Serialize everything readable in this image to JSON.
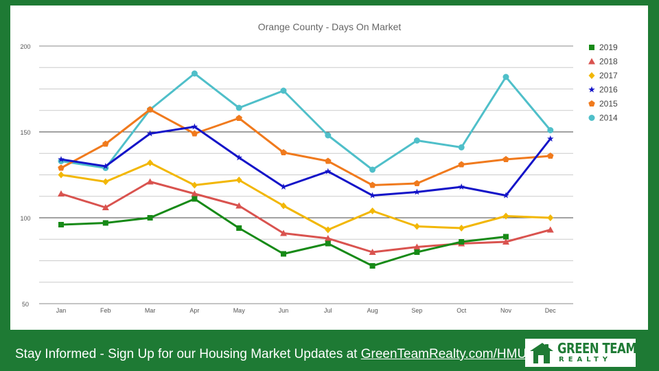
{
  "chart_data": {
    "type": "line",
    "title": "Orange County - Days On Market",
    "xlabel": "",
    "ylabel": "",
    "categories": [
      "Jan",
      "Feb",
      "Mar",
      "Apr",
      "May",
      "Jun",
      "Jul",
      "Aug",
      "Sep",
      "Oct",
      "Nov",
      "Dec"
    ],
    "ylim": [
      50,
      200
    ],
    "yticks": [
      50,
      100,
      150,
      200
    ],
    "grid": true,
    "legend_position": "right",
    "series": [
      {
        "name": "2019",
        "color": "#178a17",
        "marker": "square",
        "values": [
          96,
          97,
          100,
          111,
          94,
          79,
          85,
          72,
          80,
          86,
          89,
          null
        ]
      },
      {
        "name": "2018",
        "color": "#d9534f",
        "marker": "triangle",
        "values": [
          114,
          106,
          121,
          114,
          107,
          91,
          88,
          80,
          83,
          85,
          86,
          93
        ]
      },
      {
        "name": "2017",
        "color": "#f2b705",
        "marker": "diamond",
        "values": [
          125,
          121,
          132,
          119,
          122,
          107,
          93,
          104,
          95,
          94,
          101,
          100
        ]
      },
      {
        "name": "2016",
        "color": "#1414c8",
        "marker": "star",
        "values": [
          134,
          130,
          149,
          153,
          135,
          118,
          127,
          113,
          115,
          118,
          113,
          146
        ]
      },
      {
        "name": "2015",
        "color": "#f07a1d",
        "marker": "pentagon",
        "values": [
          129,
          143,
          163,
          149,
          158,
          138,
          133,
          119,
          120,
          131,
          134,
          136
        ]
      },
      {
        "name": "2014",
        "color": "#4fbfc9",
        "marker": "circle",
        "values": [
          133,
          129,
          163,
          184,
          164,
          174,
          148,
          128,
          145,
          141,
          182,
          151
        ]
      }
    ]
  },
  "footer": {
    "text": "Stay Informed - Sign Up for our Housing Market Updates at ",
    "link": "GreenTeamRealty.com/HMU"
  },
  "logo": {
    "title": "GREEN TEAM",
    "subtitle": "REALTY",
    "color": "#1e7a34"
  }
}
